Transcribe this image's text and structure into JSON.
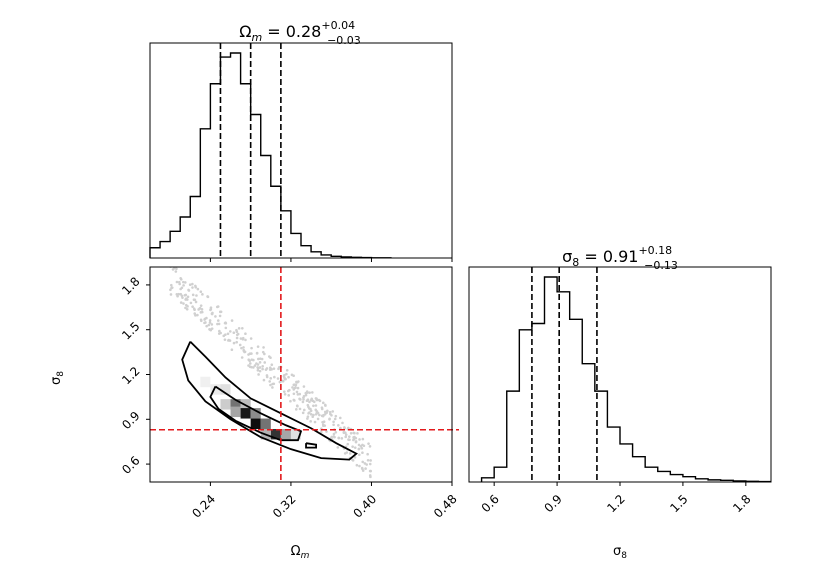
{
  "chart_data": [
    {
      "type": "histogram",
      "panel": "top-left marginal",
      "title": {
        "base": "Ω",
        "sub": "m",
        "rest": " = 0.28",
        "sup": "+0.04",
        "subscr": "−0.03"
      },
      "xlim": [
        0.18,
        0.48
      ],
      "bin_edges": [
        0.18,
        0.19,
        0.2,
        0.21,
        0.22,
        0.23,
        0.24,
        0.25,
        0.26,
        0.27,
        0.28,
        0.29,
        0.3,
        0.31,
        0.32,
        0.33,
        0.34,
        0.35,
        0.36,
        0.37,
        0.38,
        0.39,
        0.4,
        0.41,
        0.42
      ],
      "counts": [
        0.05,
        0.08,
        0.13,
        0.2,
        0.3,
        0.63,
        0.85,
        0.98,
        1.0,
        0.85,
        0.7,
        0.5,
        0.35,
        0.23,
        0.12,
        0.06,
        0.03,
        0.015,
        0.008,
        0.005,
        0.003,
        0.002,
        0.001,
        0.001
      ],
      "quantile_lines": [
        0.25,
        0.28,
        0.31
      ],
      "xticks": [
        0.24,
        0.32,
        0.4,
        0.48
      ],
      "xtick_labels_visible": false
    },
    {
      "type": "heatmap",
      "panel": "bottom-left 2D",
      "xlabel": {
        "base": "Ω",
        "sub": "m"
      },
      "ylabel": {
        "base": "σ",
        "sub": "8"
      },
      "xlim": [
        0.18,
        0.48
      ],
      "ylim": [
        0.48,
        1.92
      ],
      "xticks": [
        0.24,
        0.32,
        0.4,
        0.48
      ],
      "xtick_labels": [
        "0.24",
        "0.32",
        "0.40",
        "0.48"
      ],
      "yticks": [
        0.6,
        0.9,
        1.2,
        1.5,
        1.8
      ],
      "ytick_labels": [
        "0.6",
        "0.9",
        "1.2",
        "1.5",
        "1.8"
      ],
      "truth": {
        "x": 0.31,
        "y": 0.83,
        "color": "#e31a1c"
      },
      "density_cells": [
        {
          "x": 0.245,
          "y": 1.1,
          "v": 0.08
        },
        {
          "x": 0.255,
          "y": 1.1,
          "v": 0.12
        },
        {
          "x": 0.255,
          "y": 1.0,
          "v": 0.2
        },
        {
          "x": 0.265,
          "y": 1.0,
          "v": 0.55
        },
        {
          "x": 0.275,
          "y": 1.0,
          "v": 0.25
        },
        {
          "x": 0.265,
          "y": 0.95,
          "v": 0.35
        },
        {
          "x": 0.275,
          "y": 0.94,
          "v": 0.9
        },
        {
          "x": 0.285,
          "y": 0.94,
          "v": 0.45
        },
        {
          "x": 0.285,
          "y": 0.87,
          "v": 0.95
        },
        {
          "x": 0.295,
          "y": 0.87,
          "v": 0.55
        },
        {
          "x": 0.305,
          "y": 0.8,
          "v": 0.8
        },
        {
          "x": 0.295,
          "y": 0.8,
          "v": 0.3
        },
        {
          "x": 0.315,
          "y": 0.8,
          "v": 0.35
        },
        {
          "x": 0.235,
          "y": 1.15,
          "v": 0.06
        },
        {
          "x": 0.325,
          "y": 0.8,
          "v": 0.12
        }
      ],
      "contours": [
        [
          [
            0.22,
            1.42
          ],
          [
            0.235,
            1.32
          ],
          [
            0.255,
            1.18
          ],
          [
            0.28,
            1.04
          ],
          [
            0.31,
            0.94
          ],
          [
            0.34,
            0.84
          ],
          [
            0.365,
            0.74
          ],
          [
            0.385,
            0.67
          ],
          [
            0.378,
            0.63
          ],
          [
            0.35,
            0.64
          ],
          [
            0.32,
            0.7
          ],
          [
            0.29,
            0.78
          ],
          [
            0.26,
            0.9
          ],
          [
            0.235,
            1.02
          ],
          [
            0.218,
            1.16
          ],
          [
            0.212,
            1.3
          ],
          [
            0.22,
            1.42
          ]
        ],
        [
          [
            0.245,
            1.12
          ],
          [
            0.265,
            1.03
          ],
          [
            0.29,
            0.94
          ],
          [
            0.315,
            0.86
          ],
          [
            0.33,
            0.82
          ],
          [
            0.327,
            0.76
          ],
          [
            0.31,
            0.76
          ],
          [
            0.29,
            0.81
          ],
          [
            0.265,
            0.89
          ],
          [
            0.248,
            0.97
          ],
          [
            0.24,
            1.05
          ],
          [
            0.245,
            1.12
          ]
        ],
        [
          [
            0.335,
            0.74
          ],
          [
            0.345,
            0.73
          ],
          [
            0.345,
            0.71
          ],
          [
            0.335,
            0.71
          ],
          [
            0.335,
            0.74
          ]
        ]
      ]
    },
    {
      "type": "histogram",
      "panel": "bottom-right marginal",
      "title": {
        "base": "σ",
        "sub": "8",
        "rest": " = 0.91",
        "sup": "+0.18",
        "subscr": "−0.13"
      },
      "xlabel": {
        "base": "σ",
        "sub": "8"
      },
      "xlim": [
        0.48,
        1.92
      ],
      "bin_edges": [
        0.54,
        0.6,
        0.66,
        0.72,
        0.78,
        0.84,
        0.9,
        0.96,
        1.02,
        1.08,
        1.14,
        1.2,
        1.26,
        1.32,
        1.38,
        1.44,
        1.5,
        1.56,
        1.62,
        1.68,
        1.74,
        1.8,
        1.86,
        1.92
      ],
      "counts": [
        0.02,
        0.07,
        0.43,
        0.72,
        0.75,
        0.97,
        0.9,
        0.77,
        0.56,
        0.43,
        0.26,
        0.18,
        0.12,
        0.07,
        0.05,
        0.035,
        0.025,
        0.015,
        0.01,
        0.008,
        0.005,
        0.003,
        0.002
      ],
      "quantile_lines": [
        0.78,
        0.91,
        1.09
      ],
      "xticks": [
        0.6,
        0.9,
        1.2,
        1.5,
        1.8
      ],
      "xtick_labels": [
        "0.6",
        "0.9",
        "1.2",
        "1.5",
        "1.8"
      ]
    }
  ]
}
